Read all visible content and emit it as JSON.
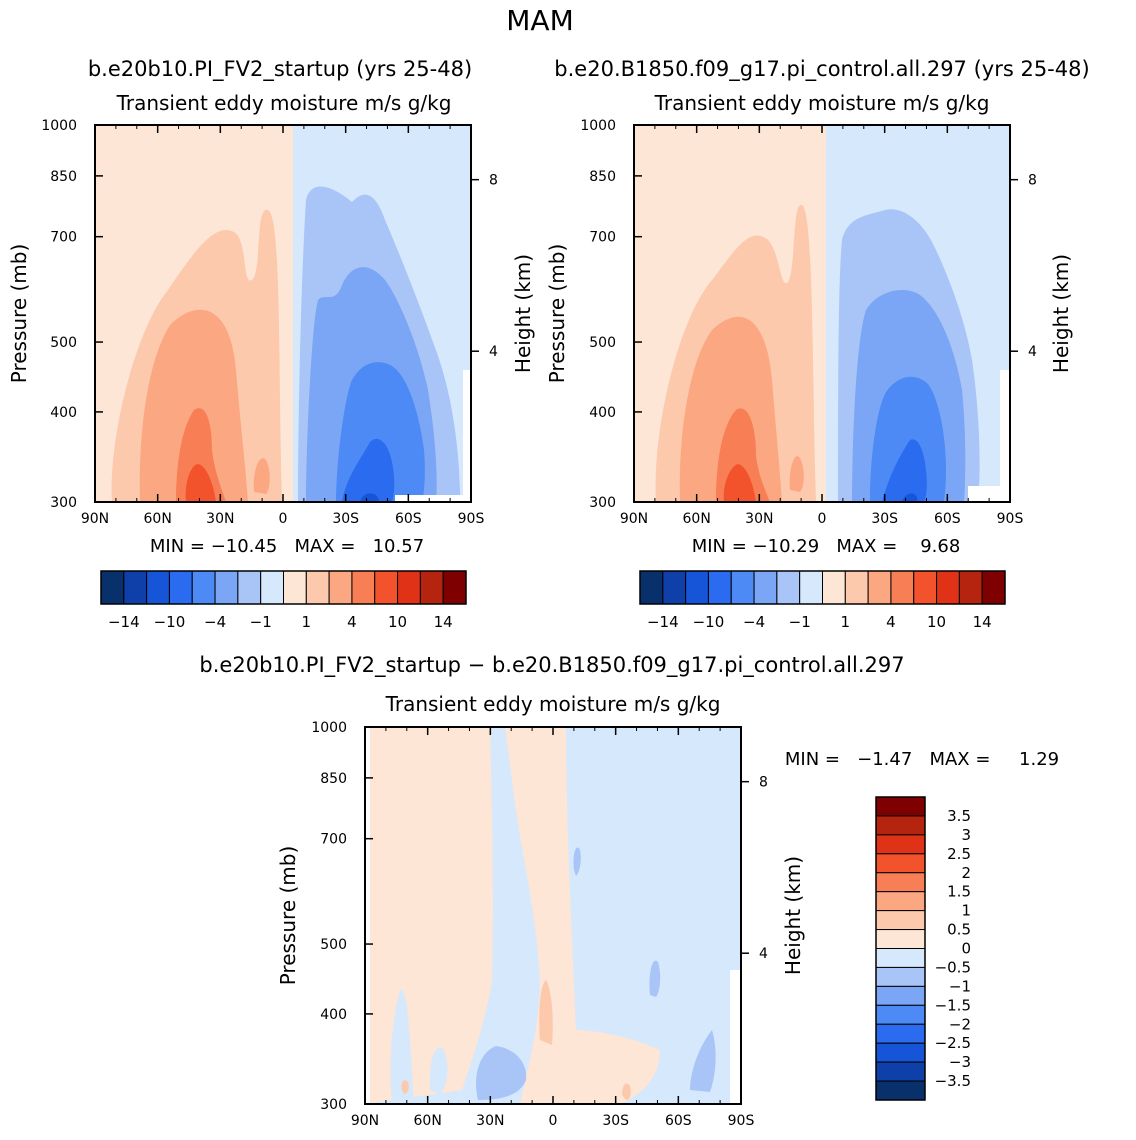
{
  "page_title": "MAM",
  "colors": {
    "div_ramp": [
      "#08306b",
      "#0f3fa8",
      "#1654d8",
      "#2b6bf0",
      "#4d8af5",
      "#7aa6f5",
      "#a9c5f7",
      "#d6e8fb",
      "#fde6d6",
      "#fcc9ad",
      "#fba882",
      "#f77e55",
      "#f2532c",
      "#e03216",
      "#b5240f",
      "#7f0000"
    ]
  },
  "chart_data": [
    {
      "type": "heatmap",
      "title": "b.e20b10.PI_FV2_startup (yrs 25-48)",
      "subtitle": "Transient eddy moisture m/s g/kg",
      "ylabel": "Pressure (mb)",
      "ylabel_right": "Height (km)",
      "x_ticks": [
        "90N",
        "60N",
        "30N",
        "0",
        "30S",
        "60S",
        "90S"
      ],
      "y_ticks": [
        "300",
        "400",
        "500",
        "700",
        "850",
        "1000"
      ],
      "y_ticks_right": [
        "8",
        "4"
      ],
      "stats": "MIN = −10.45   MAX =   10.57",
      "colorbar_labels": [
        "−14",
        "−10",
        "−4",
        "−1",
        "1",
        "4",
        "10",
        "14"
      ],
      "ylim": [
        1000,
        300
      ],
      "min": -10.45,
      "max": 10.57
    },
    {
      "type": "heatmap",
      "title": "b.e20.B1850.f09_g17.pi_control.all.297 (yrs 25-48)",
      "subtitle": "Transient eddy moisture m/s g/kg",
      "ylabel": "Pressure (mb)",
      "ylabel_right": "Height (km)",
      "x_ticks": [
        "90N",
        "60N",
        "30N",
        "0",
        "30S",
        "60S",
        "90S"
      ],
      "y_ticks": [
        "300",
        "400",
        "500",
        "700",
        "850",
        "1000"
      ],
      "y_ticks_right": [
        "8",
        "4"
      ],
      "stats": "MIN = −10.29   MAX =    9.68",
      "colorbar_labels": [
        "−14",
        "−10",
        "−4",
        "−1",
        "1",
        "4",
        "10",
        "14"
      ],
      "ylim": [
        1000,
        300
      ],
      "min": -10.29,
      "max": 9.68
    },
    {
      "type": "heatmap",
      "title": "b.e20b10.PI_FV2_startup − b.e20.B1850.f09_g17.pi_control.all.297",
      "subtitle": "Transient eddy moisture m/s g/kg",
      "ylabel": "Pressure (mb)",
      "ylabel_right": "Height (km)",
      "x_ticks": [
        "90N",
        "60N",
        "30N",
        "0",
        "30S",
        "60S",
        "90S"
      ],
      "y_ticks": [
        "300",
        "400",
        "500",
        "700",
        "850",
        "1000"
      ],
      "y_ticks_right": [
        "8",
        "4"
      ],
      "stats": "MIN =   −1.47   MAX =     1.29",
      "colorbar_labels": [
        "3.5",
        "3",
        "2.5",
        "2",
        "1.5",
        "1",
        "0.5",
        "0",
        "−0.5",
        "−1",
        "−1.5",
        "−2",
        "−2.5",
        "−3",
        "−3.5"
      ],
      "ylim": [
        1000,
        300
      ],
      "min": -1.47,
      "max": 1.29
    }
  ]
}
